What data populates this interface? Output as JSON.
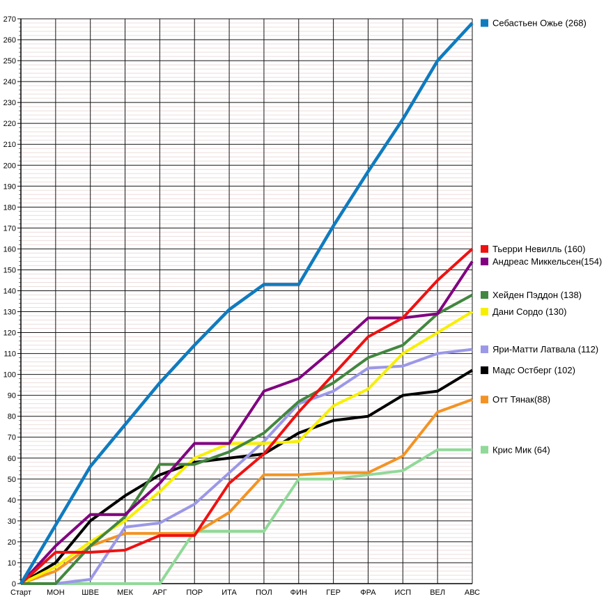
{
  "chart_data": {
    "type": "line",
    "title": "",
    "x_categories": [
      "Старт",
      "МОН",
      "ШВЕ",
      "МЕК",
      "АРГ",
      "ПОР",
      "ИТА",
      "ПОЛ",
      "ФИН",
      "ГЕР",
      "ФРА",
      "ИСП",
      "ВЕЛ",
      "АВС"
    ],
    "y_axis": {
      "min": 0,
      "max": 270,
      "major_step": 10,
      "minor_step": 2
    },
    "grid": true,
    "legend_position": "right",
    "colors": {
      "major_grid": "#141414",
      "minor_grid": "#eedddd",
      "axis": "#000000",
      "background": "#ffffff"
    },
    "series": [
      {
        "name": "Себастьен Ожье",
        "legend_label": "Себастьен Ожье (268)",
        "final": 268,
        "color": "#0f7bbf",
        "values": [
          0,
          28,
          56,
          76,
          96,
          114,
          131,
          143,
          143,
          171,
          197,
          222,
          250,
          268
        ]
      },
      {
        "name": "Тьерри Невилль",
        "legend_label": "Тьерри Невилль (160)",
        "final": 160,
        "color": "#ee1111",
        "values": [
          0,
          15,
          15,
          16,
          23,
          23,
          48,
          62,
          82,
          100,
          118,
          127,
          145,
          160
        ]
      },
      {
        "name": "Андреас Миккельсен",
        "legend_label": "Андреас Миккельсен(154)",
        "final": 154,
        "color": "#800080",
        "values": [
          0,
          18,
          33,
          33,
          48,
          67,
          67,
          92,
          98,
          112,
          127,
          127,
          129,
          154
        ]
      },
      {
        "name": "Хейден Пэддон",
        "legend_label": "Хейден Пэддон (138)",
        "final": 138,
        "color": "#42873f",
        "values": [
          0,
          0,
          18,
          32,
          57,
          57,
          63,
          72,
          87,
          96,
          108,
          114,
          129,
          138
        ]
      },
      {
        "name": "Дани Сордо",
        "legend_label": "Дани Сордо (130)",
        "final": 130,
        "color": "#f7ef00",
        "values": [
          0,
          8,
          20,
          30,
          44,
          60,
          67,
          67,
          68,
          85,
          93,
          110,
          120,
          130
        ]
      },
      {
        "name": "Яри-Матти Латвала",
        "legend_label": "Яри-Матти Латвала (112)",
        "final": 112,
        "color": "#9b98e8",
        "values": [
          0,
          0,
          2,
          27,
          29,
          38,
          53,
          68,
          86,
          92,
          103,
          104,
          110,
          112
        ]
      },
      {
        "name": "Мадс Остберг",
        "legend_label": "Мадс Остберг (102)",
        "final": 102,
        "color": "#000000",
        "values": [
          0,
          10,
          30,
          42,
          52,
          58,
          60,
          62,
          72,
          78,
          80,
          90,
          92,
          102
        ]
      },
      {
        "name": "Отт Тянак",
        "legend_label": "Отт Тянак(88)",
        "final": 88,
        "color": "#f39324",
        "values": [
          0,
          6,
          18,
          24,
          24,
          24,
          34,
          52,
          52,
          53,
          53,
          61,
          82,
          88
        ]
      },
      {
        "name": "Крис Мик",
        "legend_label": "Крис Мик (64)",
        "final": 64,
        "color": "#90d998",
        "values": [
          0,
          0,
          0,
          0,
          0,
          25,
          25,
          25,
          50,
          50,
          52,
          54,
          64,
          64
        ]
      }
    ]
  }
}
